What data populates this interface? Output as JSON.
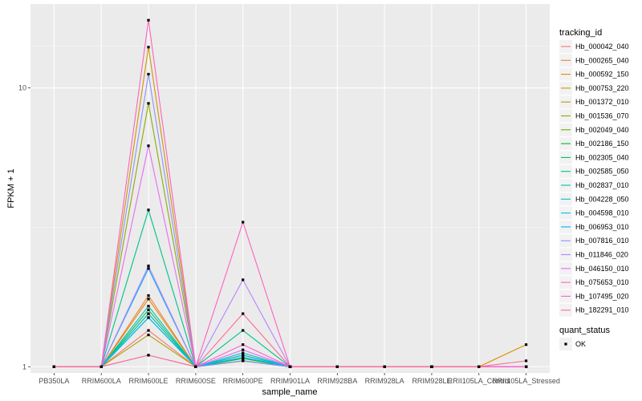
{
  "chart_data": {
    "type": "line",
    "xlabel": "sample_name",
    "ylabel": "FPKM + 1",
    "y_scale": "log10",
    "ylim": [
      0.95,
      20
    ],
    "y_ticks": [
      1,
      10
    ],
    "grid": true,
    "legend_placement": "right",
    "categories": [
      "PB350LA",
      "RRIM600LA",
      "RRIM600LE",
      "RRIM600SE",
      "RRIM600PE",
      "RRIM901LA",
      "RRIM928BA",
      "RRIM928LA",
      "RRIM928LE",
      "RRII105LA_Control",
      "RRII105LA_Stressed"
    ],
    "legend_title": "tracking_id",
    "series": [
      {
        "name": "Hb_000042_040",
        "color": "#F8766D",
        "values": [
          1,
          1,
          1.35,
          1,
          1.05,
          1,
          1,
          1,
          1,
          1,
          1
        ]
      },
      {
        "name": "Hb_000265_040",
        "color": "#EE8042",
        "values": [
          1,
          1,
          1.8,
          1,
          1.05,
          1,
          1,
          1,
          1,
          1,
          1
        ]
      },
      {
        "name": "Hb_000592_150",
        "color": "#DE8C00",
        "values": [
          1,
          1,
          1.75,
          1,
          1.05,
          1,
          1,
          1,
          1,
          1,
          1.2
        ]
      },
      {
        "name": "Hb_000753_220",
        "color": "#C99800",
        "values": [
          1,
          1,
          14,
          1,
          1.1,
          1,
          1,
          1,
          1,
          1,
          1
        ]
      },
      {
        "name": "Hb_001372_010",
        "color": "#AFA100",
        "values": [
          1,
          1,
          1.3,
          1,
          1.05,
          1,
          1,
          1,
          1,
          1,
          1
        ]
      },
      {
        "name": "Hb_001536_070",
        "color": "#8FAA00",
        "values": [
          1,
          1,
          8.8,
          1,
          1.05,
          1,
          1,
          1,
          1,
          1,
          1
        ]
      },
      {
        "name": "Hb_002049_040",
        "color": "#64B200",
        "values": [
          1,
          1,
          1.55,
          1,
          1.08,
          1,
          1,
          1,
          1,
          1,
          1
        ]
      },
      {
        "name": "Hb_002186_150",
        "color": "#00B81F",
        "values": [
          1,
          1,
          1.5,
          1,
          1.07,
          1,
          1,
          1,
          1,
          1,
          1
        ]
      },
      {
        "name": "Hb_002305_040",
        "color": "#00BD5C",
        "values": [
          1,
          1,
          1.6,
          1,
          1.05,
          1,
          1,
          1,
          1,
          1,
          1
        ]
      },
      {
        "name": "Hb_002585_050",
        "color": "#00C08B",
        "values": [
          1,
          1,
          3.65,
          1,
          1.35,
          1,
          1,
          1,
          1,
          1,
          1
        ]
      },
      {
        "name": "Hb_002837_010",
        "color": "#00C1B2",
        "values": [
          1,
          1,
          1.65,
          1,
          1.12,
          1,
          1,
          1,
          1,
          1,
          1
        ]
      },
      {
        "name": "Hb_004228_050",
        "color": "#00BFD4",
        "values": [
          1,
          1,
          1.55,
          1,
          1.1,
          1,
          1,
          1,
          1,
          1,
          1
        ]
      },
      {
        "name": "Hb_004598_010",
        "color": "#00BAEF",
        "values": [
          1,
          1,
          1.5,
          1,
          1.08,
          1,
          1,
          1,
          1,
          1,
          1
        ]
      },
      {
        "name": "Hb_006953_010",
        "color": "#00B0F6",
        "values": [
          1,
          1,
          2.25,
          1,
          1.1,
          1,
          1,
          1,
          1,
          1,
          1
        ]
      },
      {
        "name": "Hb_007816_010",
        "color": "#8F91FF",
        "values": [
          1,
          1,
          11.2,
          1,
          1.05,
          1,
          1,
          1,
          1,
          1,
          1
        ]
      },
      {
        "name": "Hb_011846_020",
        "color": "#B983FF",
        "values": [
          1,
          1,
          2.3,
          1,
          2.05,
          1,
          1,
          1,
          1,
          1,
          1
        ]
      },
      {
        "name": "Hb_046150_010",
        "color": "#E76BF3",
        "values": [
          1,
          1,
          6.2,
          1,
          1.15,
          1,
          1,
          1,
          1,
          1,
          1
        ]
      },
      {
        "name": "Hb_075653_010",
        "color": "#FF62BC",
        "values": [
          1,
          1,
          17.5,
          1,
          3.3,
          1,
          1,
          1,
          1,
          1,
          1
        ]
      },
      {
        "name": "Hb_107495_020",
        "color": "#FD61D1",
        "values": [
          1,
          1,
          1.1,
          1,
          1.2,
          1,
          1,
          1,
          1,
          1,
          1
        ]
      },
      {
        "name": "Hb_182291_010",
        "color": "#FF6C91",
        "values": [
          1,
          1,
          1.1,
          1,
          1.55,
          1,
          1,
          1,
          1,
          1,
          1.05
        ]
      }
    ],
    "quant_legend": {
      "title": "quant_status",
      "entries": [
        "OK"
      ]
    }
  }
}
